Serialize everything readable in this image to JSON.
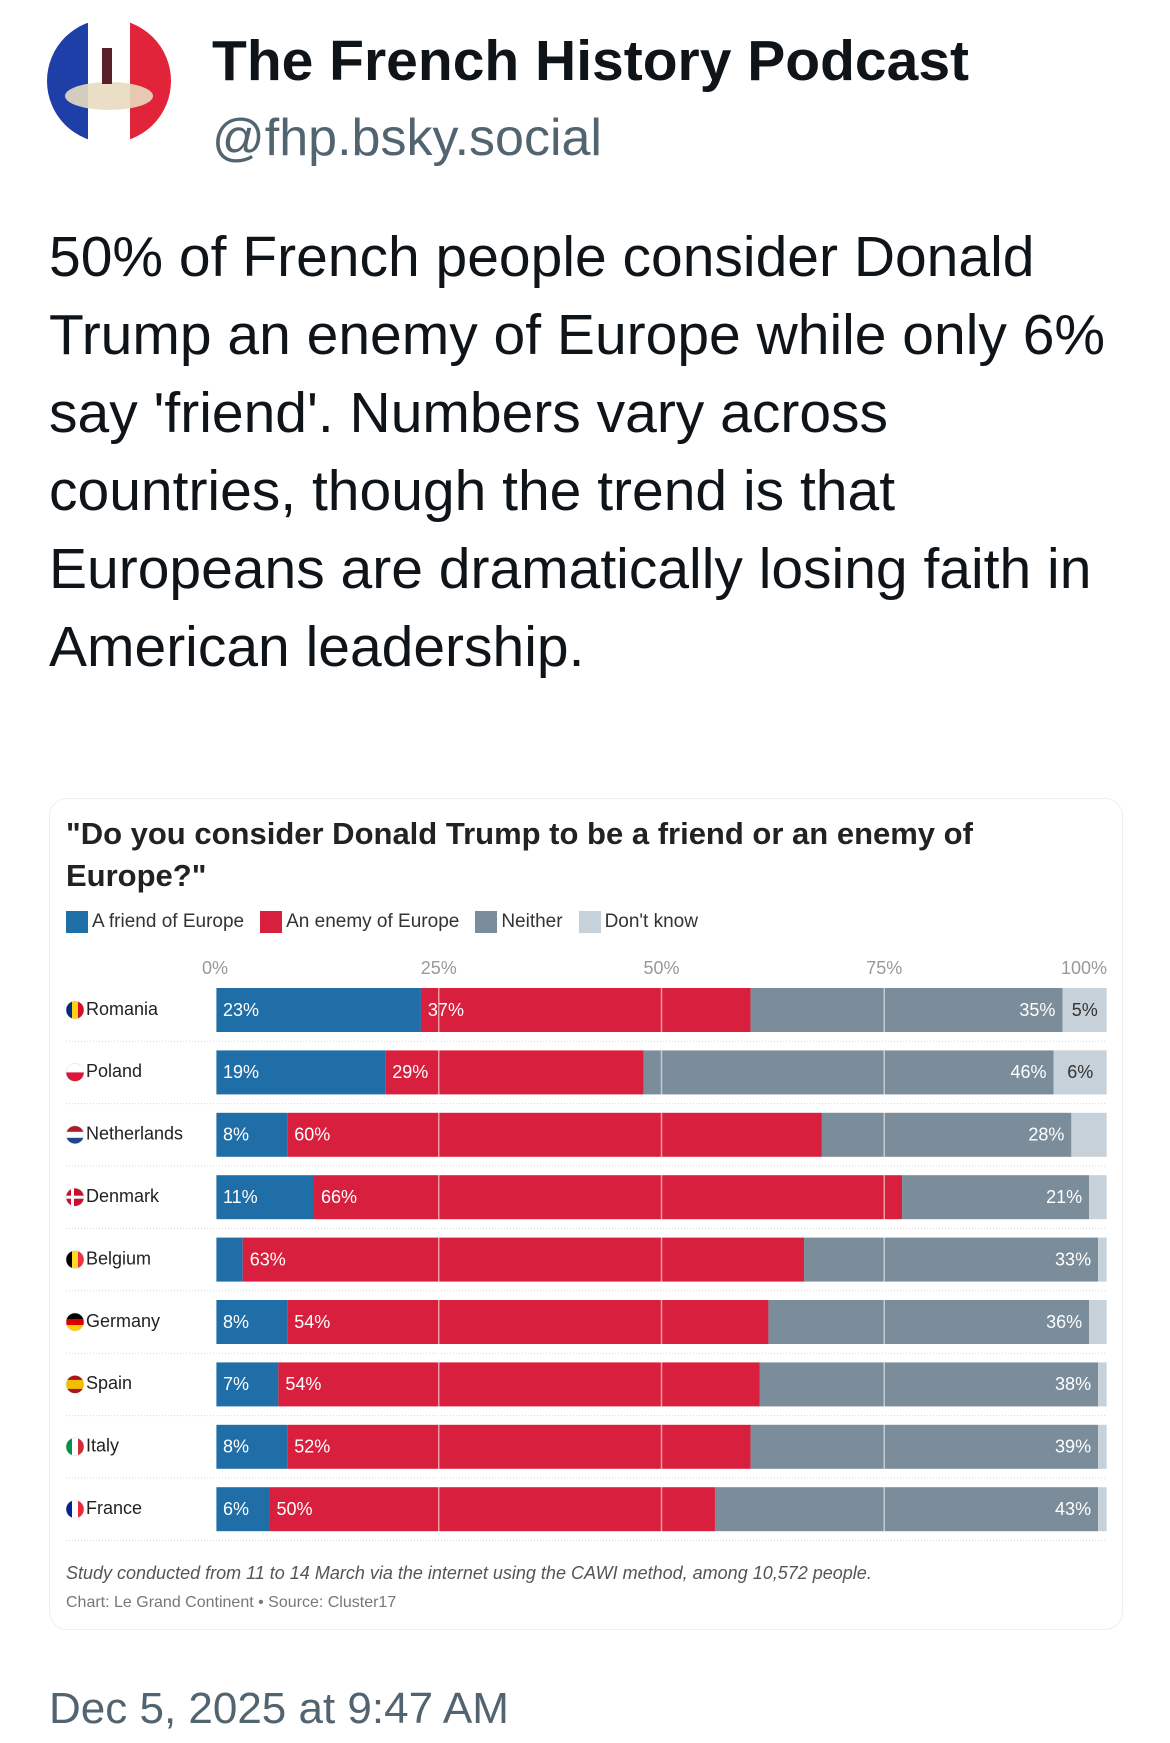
{
  "author": {
    "name": "The French History Podcast",
    "handle": "@fhp.bsky.social"
  },
  "post_text": "50% of French people consider Donald Trump an enemy of Europe while only 6% say 'friend'. Numbers vary across countries, though the trend is that Europeans are dramatically losing faith in American leadership.",
  "chart_data": {
    "type": "stacked-bar-horizontal",
    "title": "\"Do you consider Donald Trump to be a friend or an enemy of Europe?\"",
    "categories": [
      "Romania",
      "Poland",
      "Netherlands",
      "Denmark",
      "Belgium",
      "Germany",
      "Spain",
      "Italy",
      "France"
    ],
    "series": [
      {
        "name": "A friend of Europe",
        "color": "#1f6ea8",
        "values": [
          23,
          19,
          8,
          11,
          3,
          8,
          7,
          8,
          6
        ],
        "value_labels": [
          "23%",
          "19%",
          "8%",
          "11%",
          null,
          "8%",
          "7%",
          "8%",
          "6%"
        ]
      },
      {
        "name": "An enemy of Europe",
        "color": "#d81f3d",
        "values": [
          37,
          29,
          60,
          66,
          63,
          54,
          54,
          52,
          50
        ],
        "value_labels": [
          "37%",
          "29%",
          "60%",
          "66%",
          "63%",
          "54%",
          "54%",
          "52%",
          "50%"
        ]
      },
      {
        "name": "Neither",
        "color": "#7b8c9a",
        "values": [
          35,
          46,
          28,
          21,
          33,
          36,
          38,
          39,
          43
        ],
        "value_labels": [
          "35%",
          "46%",
          "28%",
          "21%",
          "33%",
          "36%",
          "38%",
          "39%",
          "43%"
        ]
      },
      {
        "name": "Don't know",
        "color": "#c6d1da",
        "values": [
          5,
          6,
          4,
          2,
          1,
          2,
          1,
          1,
          1
        ],
        "value_labels": [
          "5%",
          "6%",
          null,
          null,
          null,
          null,
          null,
          null,
          null
        ]
      }
    ],
    "xlim": [
      0,
      100
    ],
    "xticks": [
      {
        "value": 0,
        "label": "0%"
      },
      {
        "value": 25,
        "label": "25%"
      },
      {
        "value": 50,
        "label": "50%"
      },
      {
        "value": 75,
        "label": "75%"
      },
      {
        "value": 100,
        "label": "100%"
      }
    ],
    "grid": true,
    "note": "Study conducted from 11 to 14 March via the internet using the CAWI method, among 10,572 people.",
    "source": "Chart: Le Grand Continent • Source: Cluster17"
  },
  "timestamp": "Dec 5, 2025 at 9:47 AM"
}
